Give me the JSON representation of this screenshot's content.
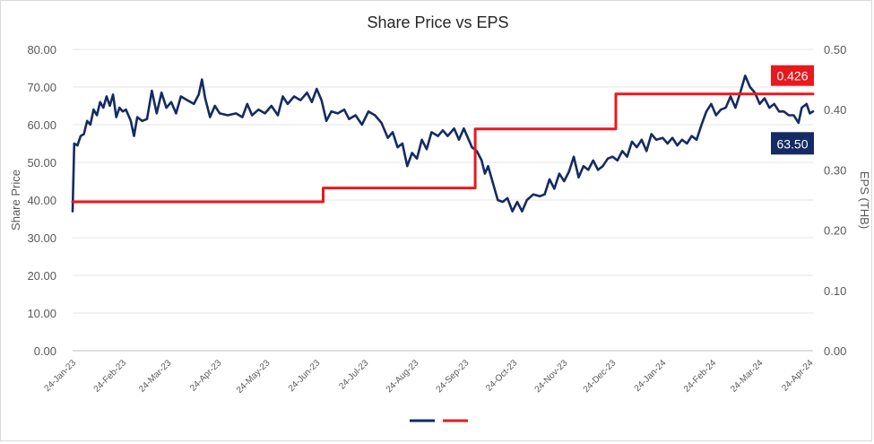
{
  "chart_data": {
    "type": "line",
    "title": "Share Price vs EPS",
    "ylabel": "Share Price",
    "y2label": "EPS (THB)",
    "ylim": [
      0,
      80
    ],
    "y2lim": [
      0,
      0.5
    ],
    "y_ticks": [
      "0.00",
      "10.00",
      "20.00",
      "30.00",
      "40.00",
      "50.00",
      "60.00",
      "70.00",
      "80.00"
    ],
    "y2_ticks": [
      "0.00",
      "0.10",
      "0.20",
      "0.30",
      "0.40",
      "0.50"
    ],
    "x_ticks": [
      "24-Jan-23",
      "24-Feb-23",
      "24-Mar-23",
      "24-Apr-23",
      "24-May-23",
      "24-Jun-23",
      "24-Jul-23",
      "24-Aug-23",
      "24-Sep-23",
      "24-Oct-23",
      "24-Nov-23",
      "24-Dec-23",
      "24-Jan-24",
      "24-Feb-24",
      "24-Mar-24",
      "24-Apr-24"
    ],
    "xlim": [
      "2023-01-24",
      "2024-04-26"
    ],
    "grid": "horizontal",
    "legend": "bottom-center",
    "series": [
      {
        "axis": "left",
        "color": "#142b63",
        "points": [
          [
            "2023-01-24",
            37.0
          ],
          [
            "2023-01-25",
            55.0
          ],
          [
            "2023-01-27",
            54.5
          ],
          [
            "2023-01-29",
            57.0
          ],
          [
            "2023-01-31",
            57.5
          ],
          [
            "2023-02-02",
            61.0
          ],
          [
            "2023-02-04",
            60.0
          ],
          [
            "2023-02-06",
            64.0
          ],
          [
            "2023-02-08",
            62.5
          ],
          [
            "2023-02-10",
            66.0
          ],
          [
            "2023-02-12",
            64.5
          ],
          [
            "2023-02-14",
            67.5
          ],
          [
            "2023-02-16",
            65.0
          ],
          [
            "2023-02-18",
            68.0
          ],
          [
            "2023-02-20",
            62.0
          ],
          [
            "2023-02-22",
            64.5
          ],
          [
            "2023-02-24",
            63.5
          ],
          [
            "2023-02-26",
            64.0
          ],
          [
            "2023-03-01",
            61.0
          ],
          [
            "2023-03-03",
            57.0
          ],
          [
            "2023-03-05",
            62.0
          ],
          [
            "2023-03-08",
            61.0
          ],
          [
            "2023-03-11",
            61.5
          ],
          [
            "2023-03-14",
            69.0
          ],
          [
            "2023-03-17",
            63.0
          ],
          [
            "2023-03-20",
            68.5
          ],
          [
            "2023-03-23",
            64.5
          ],
          [
            "2023-03-26",
            66.0
          ],
          [
            "2023-03-29",
            63.0
          ],
          [
            "2023-04-01",
            67.5
          ],
          [
            "2023-04-05",
            66.5
          ],
          [
            "2023-04-09",
            65.5
          ],
          [
            "2023-04-12",
            68.0
          ],
          [
            "2023-04-14",
            72.0
          ],
          [
            "2023-04-16",
            67.0
          ],
          [
            "2023-04-19",
            62.0
          ],
          [
            "2023-04-22",
            65.0
          ],
          [
            "2023-04-25",
            63.0
          ],
          [
            "2023-04-30",
            62.5
          ],
          [
            "2023-05-05",
            63.0
          ],
          [
            "2023-05-09",
            62.0
          ],
          [
            "2023-05-12",
            65.5
          ],
          [
            "2023-05-15",
            62.5
          ],
          [
            "2023-05-19",
            64.0
          ],
          [
            "2023-05-23",
            63.0
          ],
          [
            "2023-05-27",
            65.0
          ],
          [
            "2023-05-31",
            62.5
          ],
          [
            "2023-06-03",
            67.5
          ],
          [
            "2023-06-06",
            65.5
          ],
          [
            "2023-06-10",
            67.5
          ],
          [
            "2023-06-14",
            66.5
          ],
          [
            "2023-06-18",
            68.5
          ],
          [
            "2023-06-21",
            66.0
          ],
          [
            "2023-06-24",
            69.5
          ],
          [
            "2023-06-27",
            66.5
          ],
          [
            "2023-06-30",
            61.0
          ],
          [
            "2023-07-03",
            63.5
          ],
          [
            "2023-07-07",
            63.0
          ],
          [
            "2023-07-11",
            64.0
          ],
          [
            "2023-07-14",
            61.5
          ],
          [
            "2023-07-18",
            62.5
          ],
          [
            "2023-07-22",
            60.0
          ],
          [
            "2023-07-26",
            63.5
          ],
          [
            "2023-07-30",
            62.5
          ],
          [
            "2023-08-03",
            60.5
          ],
          [
            "2023-08-07",
            56.5
          ],
          [
            "2023-08-10",
            58.0
          ],
          [
            "2023-08-13",
            54.0
          ],
          [
            "2023-08-16",
            55.0
          ],
          [
            "2023-08-19",
            49.0
          ],
          [
            "2023-08-22",
            52.5
          ],
          [
            "2023-08-25",
            51.0
          ],
          [
            "2023-08-28",
            56.0
          ],
          [
            "2023-08-31",
            53.5
          ],
          [
            "2023-09-03",
            58.0
          ],
          [
            "2023-09-07",
            57.0
          ],
          [
            "2023-09-10",
            58.5
          ],
          [
            "2023-09-13",
            57.0
          ],
          [
            "2023-09-17",
            59.0
          ],
          [
            "2023-09-20",
            56.0
          ],
          [
            "2023-09-23",
            59.0
          ],
          [
            "2023-09-26",
            56.0
          ],
          [
            "2023-09-28",
            54.0
          ],
          [
            "2023-10-01",
            53.0
          ],
          [
            "2023-10-04",
            50.5
          ],
          [
            "2023-10-06",
            47.0
          ],
          [
            "2023-10-08",
            49.0
          ],
          [
            "2023-10-11",
            44.5
          ],
          [
            "2023-10-14",
            40.0
          ],
          [
            "2023-10-17",
            39.5
          ],
          [
            "2023-10-20",
            40.5
          ],
          [
            "2023-10-23",
            37.0
          ],
          [
            "2023-10-26",
            39.5
          ],
          [
            "2023-10-29",
            37.0
          ],
          [
            "2023-11-01",
            40.0
          ],
          [
            "2023-11-05",
            41.5
          ],
          [
            "2023-11-09",
            41.0
          ],
          [
            "2023-11-12",
            41.5
          ],
          [
            "2023-11-15",
            45.5
          ],
          [
            "2023-11-18",
            43.0
          ],
          [
            "2023-11-21",
            47.0
          ],
          [
            "2023-11-24",
            45.0
          ],
          [
            "2023-11-27",
            47.5
          ],
          [
            "2023-11-30",
            51.5
          ],
          [
            "2023-12-03",
            46.0
          ],
          [
            "2023-12-06",
            49.0
          ],
          [
            "2023-12-09",
            48.0
          ],
          [
            "2023-12-12",
            50.5
          ],
          [
            "2023-12-15",
            48.0
          ],
          [
            "2023-12-18",
            49.0
          ],
          [
            "2023-12-21",
            51.0
          ],
          [
            "2023-12-24",
            51.5
          ],
          [
            "2023-12-27",
            50.5
          ],
          [
            "2023-12-30",
            53.0
          ],
          [
            "2024-01-02",
            51.5
          ],
          [
            "2024-01-05",
            55.5
          ],
          [
            "2024-01-08",
            54.0
          ],
          [
            "2024-01-11",
            56.0
          ],
          [
            "2024-01-14",
            53.0
          ],
          [
            "2024-01-17",
            57.5
          ],
          [
            "2024-01-20",
            56.0
          ],
          [
            "2024-01-24",
            56.5
          ],
          [
            "2024-01-27",
            55.0
          ],
          [
            "2024-01-30",
            56.5
          ],
          [
            "2024-02-02",
            54.5
          ],
          [
            "2024-02-05",
            56.0
          ],
          [
            "2024-02-08",
            55.0
          ],
          [
            "2024-02-11",
            57.0
          ],
          [
            "2024-02-14",
            56.0
          ],
          [
            "2024-02-17",
            60.0
          ],
          [
            "2024-02-20",
            63.5
          ],
          [
            "2024-02-23",
            65.5
          ],
          [
            "2024-02-26",
            62.5
          ],
          [
            "2024-02-29",
            64.0
          ],
          [
            "2024-03-03",
            64.5
          ],
          [
            "2024-03-06",
            67.5
          ],
          [
            "2024-03-09",
            64.5
          ],
          [
            "2024-03-12",
            68.5
          ],
          [
            "2024-03-15",
            73.0
          ],
          [
            "2024-03-18",
            70.0
          ],
          [
            "2024-03-21",
            68.5
          ],
          [
            "2024-03-24",
            65.5
          ],
          [
            "2024-03-27",
            67.0
          ],
          [
            "2024-03-30",
            64.5
          ],
          [
            "2024-04-02",
            65.5
          ],
          [
            "2024-04-05",
            63.5
          ],
          [
            "2024-04-08",
            63.5
          ],
          [
            "2024-04-11",
            62.5
          ],
          [
            "2024-04-14",
            62.5
          ],
          [
            "2024-04-17",
            60.5
          ],
          [
            "2024-04-19",
            64.5
          ],
          [
            "2024-04-22",
            65.5
          ],
          [
            "2024-04-24",
            63.0
          ],
          [
            "2024-04-26",
            63.5
          ]
        ]
      },
      {
        "axis": "right",
        "color": "#e8191e",
        "step": true,
        "points": [
          [
            "2023-01-24",
            0.247
          ],
          [
            "2023-06-28",
            0.247
          ],
          [
            "2023-06-28",
            0.27
          ],
          [
            "2023-09-30",
            0.27
          ],
          [
            "2023-09-30",
            0.368
          ],
          [
            "2023-12-26",
            0.368
          ],
          [
            "2023-12-26",
            0.426
          ],
          [
            "2024-04-26",
            0.426
          ]
        ]
      }
    ],
    "callouts": [
      {
        "text": "0.426",
        "color": "#e8191e"
      },
      {
        "text": "63.50",
        "color": "#142b63"
      }
    ]
  }
}
